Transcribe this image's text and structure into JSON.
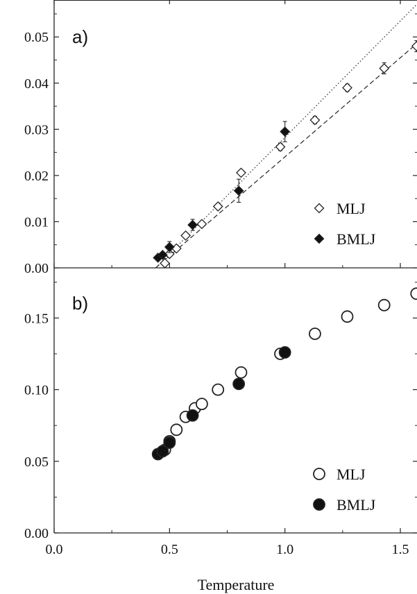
{
  "chart_data": [
    {
      "panel": "a)",
      "type": "scatter",
      "xlabel": "",
      "ylabel": "",
      "xlim": [
        0.0,
        1.57
      ],
      "ylim": [
        0.0,
        0.058
      ],
      "x_ticks": [
        0.0,
        0.5,
        1.0,
        1.5
      ],
      "y_ticks": [
        0.0,
        0.01,
        0.02,
        0.03,
        0.04,
        0.05
      ],
      "y_tick_labels": [
        "0.00",
        "0.01",
        "0.02",
        "0.03",
        "0.04",
        "0.05"
      ],
      "legend_position": "bottom-right",
      "series": [
        {
          "name": "MLJ",
          "marker": "open-diamond",
          "points": [
            {
              "x": 0.48,
              "y": 0.001,
              "err": 0.001
            },
            {
              "x": 0.5,
              "y": 0.003,
              "err": 0.0006
            },
            {
              "x": 0.53,
              "y": 0.0042,
              "err": 0.0006
            },
            {
              "x": 0.57,
              "y": 0.007,
              "err": 0.0006
            },
            {
              "x": 0.64,
              "y": 0.0095,
              "err": 0.0006
            },
            {
              "x": 0.71,
              "y": 0.0133,
              "err": 0.0006
            },
            {
              "x": 0.81,
              "y": 0.0206,
              "err": 0.0006
            },
            {
              "x": 0.98,
              "y": 0.0262,
              "err": 0.0008
            },
            {
              "x": 1.13,
              "y": 0.032,
              "err": 0.0008
            },
            {
              "x": 1.27,
              "y": 0.039,
              "err": 0.0008
            },
            {
              "x": 1.43,
              "y": 0.0432,
              "err": 0.0012
            },
            {
              "x": 1.57,
              "y": 0.048,
              "err": 0.0012
            }
          ]
        },
        {
          "name": "BMLJ",
          "marker": "filled-diamond",
          "points": [
            {
              "x": 0.45,
              "y": 0.0022,
              "err": 0.0004
            },
            {
              "x": 0.47,
              "y": 0.0028,
              "err": 0.0004
            },
            {
              "x": 0.5,
              "y": 0.0045,
              "err": 0.0012
            },
            {
              "x": 0.6,
              "y": 0.0093,
              "err": 0.0012
            },
            {
              "x": 0.8,
              "y": 0.0167,
              "err": 0.0025
            },
            {
              "x": 1.0,
              "y": 0.0295,
              "err": 0.0022
            }
          ]
        }
      ],
      "fit_lines": [
        {
          "style": "dashed",
          "from": [
            0.44,
            0.0
          ],
          "to": [
            1.57,
            0.0485
          ]
        },
        {
          "style": "dotted",
          "from": [
            0.44,
            0.0
          ],
          "to": [
            1.57,
            0.057
          ]
        }
      ]
    },
    {
      "panel": "b)",
      "type": "scatter",
      "xlabel": "Temperature",
      "ylabel": "",
      "xlim": [
        0.0,
        1.57
      ],
      "ylim": [
        0.0,
        0.185
      ],
      "x_ticks": [
        0.0,
        0.5,
        1.0,
        1.5
      ],
      "x_tick_labels": [
        "0.0",
        "0.5",
        "1.0",
        "1.5"
      ],
      "y_ticks": [
        0.0,
        0.05,
        0.1,
        0.15
      ],
      "y_tick_labels": [
        "0.00",
        "0.05",
        "0.10",
        "0.15"
      ],
      "legend_position": "bottom-right",
      "series": [
        {
          "name": "MLJ",
          "marker": "open-circle",
          "points": [
            {
              "x": 0.48,
              "y": 0.058
            },
            {
              "x": 0.5,
              "y": 0.064
            },
            {
              "x": 0.53,
              "y": 0.072
            },
            {
              "x": 0.57,
              "y": 0.081
            },
            {
              "x": 0.61,
              "y": 0.087
            },
            {
              "x": 0.64,
              "y": 0.09
            },
            {
              "x": 0.71,
              "y": 0.1
            },
            {
              "x": 0.81,
              "y": 0.112
            },
            {
              "x": 0.98,
              "y": 0.125
            },
            {
              "x": 1.13,
              "y": 0.139
            },
            {
              "x": 1.27,
              "y": 0.151
            },
            {
              "x": 1.43,
              "y": 0.159
            },
            {
              "x": 1.57,
              "y": 0.167
            }
          ]
        },
        {
          "name": "BMLJ",
          "marker": "filled-circle",
          "points": [
            {
              "x": 0.45,
              "y": 0.055
            },
            {
              "x": 0.47,
              "y": 0.057
            },
            {
              "x": 0.5,
              "y": 0.063
            },
            {
              "x": 0.6,
              "y": 0.082
            },
            {
              "x": 0.8,
              "y": 0.104
            },
            {
              "x": 1.0,
              "y": 0.126
            }
          ]
        }
      ]
    }
  ]
}
